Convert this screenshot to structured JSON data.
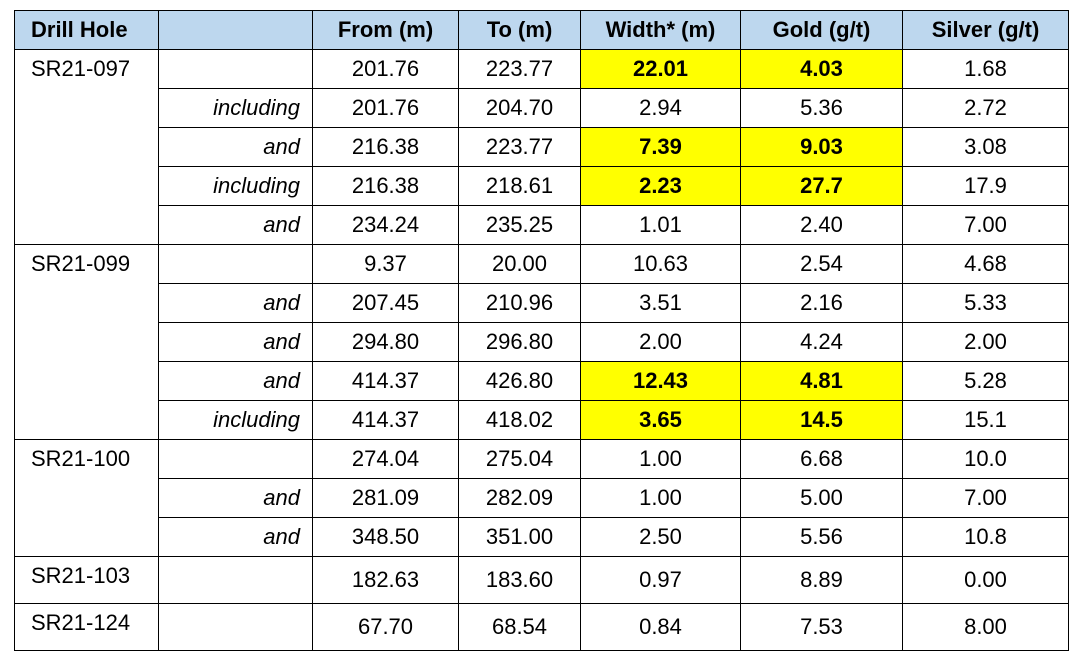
{
  "columns": [
    "Drill Hole",
    "",
    "From (m)",
    "To (m)",
    "Width* (m)",
    "Gold (g/t)",
    "Silver (g/t)"
  ],
  "highlight_color": "#ffff00",
  "header_color": "#bdd7ee",
  "groups": [
    {
      "hole": "SR21-097",
      "rows": [
        {
          "qual": "",
          "from": "201.76",
          "to": "223.77",
          "width": "22.01",
          "gold": "4.03",
          "silver": "1.68",
          "highlight": true
        },
        {
          "qual": "including",
          "from": "201.76",
          "to": "204.70",
          "width": "2.94",
          "gold": "5.36",
          "silver": "2.72",
          "highlight": false
        },
        {
          "qual": "and",
          "from": "216.38",
          "to": "223.77",
          "width": "7.39",
          "gold": "9.03",
          "silver": "3.08",
          "highlight": true
        },
        {
          "qual": "including",
          "from": "216.38",
          "to": "218.61",
          "width": "2.23",
          "gold": "27.7",
          "silver": "17.9",
          "highlight": true
        },
        {
          "qual": "and",
          "from": "234.24",
          "to": "235.25",
          "width": "1.01",
          "gold": "2.40",
          "silver": "7.00",
          "highlight": false
        }
      ]
    },
    {
      "hole": "SR21-099",
      "rows": [
        {
          "qual": "",
          "from": "9.37",
          "to": "20.00",
          "width": "10.63",
          "gold": "2.54",
          "silver": "4.68",
          "highlight": false
        },
        {
          "qual": "and",
          "from": "207.45",
          "to": "210.96",
          "width": "3.51",
          "gold": "2.16",
          "silver": "5.33",
          "highlight": false
        },
        {
          "qual": "and",
          "from": "294.80",
          "to": "296.80",
          "width": "2.00",
          "gold": "4.24",
          "silver": "2.00",
          "highlight": false
        },
        {
          "qual": "and",
          "from": "414.37",
          "to": "426.80",
          "width": "12.43",
          "gold": "4.81",
          "silver": "5.28",
          "highlight": true
        },
        {
          "qual": "including",
          "from": "414.37",
          "to": "418.02",
          "width": "3.65",
          "gold": "14.5",
          "silver": "15.1",
          "highlight": true
        }
      ]
    },
    {
      "hole": "SR21-100",
      "rows": [
        {
          "qual": "",
          "from": "274.04",
          "to": "275.04",
          "width": "1.00",
          "gold": "6.68",
          "silver": "10.0",
          "highlight": false
        },
        {
          "qual": "and",
          "from": "281.09",
          "to": "282.09",
          "width": "1.00",
          "gold": "5.00",
          "silver": "7.00",
          "highlight": false
        },
        {
          "qual": "and",
          "from": "348.50",
          "to": "351.00",
          "width": "2.50",
          "gold": "5.56",
          "silver": "10.8",
          "highlight": false
        }
      ]
    },
    {
      "hole": "SR21-103",
      "rows": [
        {
          "qual": "",
          "from": "182.63",
          "to": "183.60",
          "width": "0.97",
          "gold": "8.89",
          "silver": "0.00",
          "highlight": false
        }
      ]
    },
    {
      "hole": "SR21-124",
      "rows": [
        {
          "qual": "",
          "from": "67.70",
          "to": "68.54",
          "width": "0.84",
          "gold": "7.53",
          "silver": "8.00",
          "highlight": false
        }
      ]
    }
  ]
}
